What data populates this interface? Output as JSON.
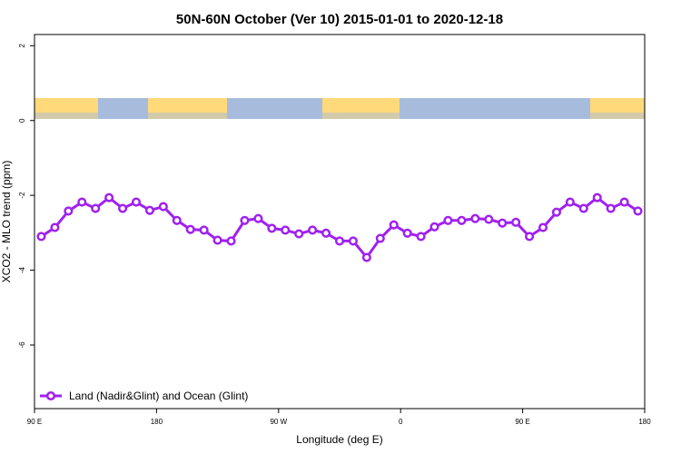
{
  "chart_data": {
    "type": "line",
    "title": "50N-60N October (Ver 10)   2015-01-01 to 2020-12-18",
    "x_label": "Longitude (deg E)",
    "y_label": "XCO2 - MLO trend (ppm)",
    "x": [
      95,
      105,
      115,
      125,
      135,
      145,
      155,
      165,
      175,
      185,
      195,
      205,
      215,
      225,
      235,
      245,
      255,
      265,
      275,
      285,
      295,
      305,
      315,
      325,
      335,
      345,
      355,
      365,
      375,
      385,
      395,
      405,
      415,
      425,
      435,
      445,
      455,
      465,
      475,
      485,
      495,
      505,
      515,
      525,
      535
    ],
    "series": [
      {
        "name": "Land (Nadir&Glint) and Ocean (Glint)",
        "color": "#a020f0",
        "values": [
          -3.1,
          -2.86,
          -2.42,
          -2.18,
          -2.35,
          -2.06,
          -2.35,
          -2.18,
          -2.4,
          -2.3,
          -2.67,
          -2.91,
          -2.93,
          -3.2,
          -3.22,
          -2.67,
          -2.62,
          -2.88,
          -2.93,
          -3.03,
          -2.93,
          -3.01,
          -3.22,
          -3.22,
          -3.66,
          -3.15,
          -2.79,
          -3.01,
          -3.1,
          -2.84,
          -2.67,
          -2.67,
          -2.62,
          -2.64,
          -2.74,
          -2.72,
          -3.1,
          -2.86,
          -2.45,
          -2.18,
          -2.35,
          -2.06,
          -2.35,
          -2.18,
          -2.42
        ]
      }
    ],
    "xlim": [
      90,
      540
    ],
    "xticks": [
      {
        "value": 90,
        "label": "90 E"
      },
      {
        "value": 180,
        "label": "180"
      },
      {
        "value": 270,
        "label": "90 W"
      },
      {
        "value": 360,
        "label": "0"
      },
      {
        "value": 450,
        "label": "90 E"
      },
      {
        "value": 540,
        "label": "180"
      }
    ],
    "ylim": [
      -7.7,
      2.3
    ],
    "yticks": [
      2,
      0,
      -2,
      -4,
      -6
    ],
    "legend": "bottom-left"
  }
}
